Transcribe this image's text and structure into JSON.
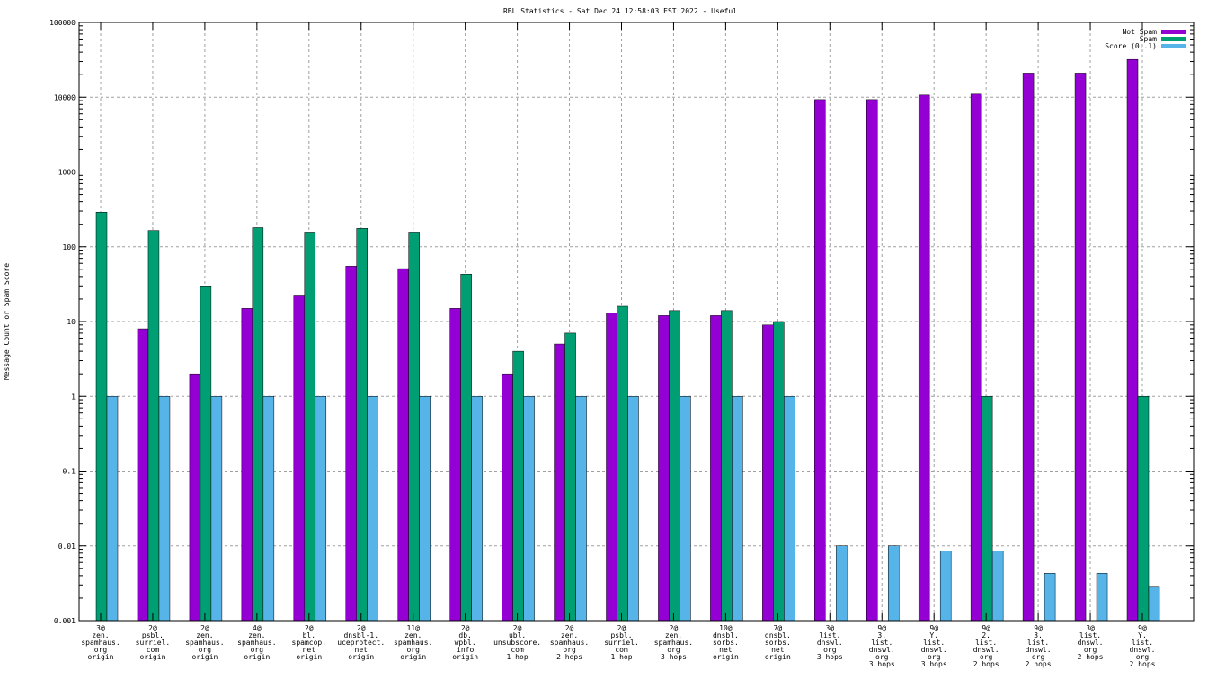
{
  "chart_data": {
    "type": "bar",
    "title": "RBL Statistics - Sat Dec 24 12:58:03 EST 2022 - Useful",
    "xlabel": "",
    "ylabel": "Message Count or Spam Score",
    "yscale": "log",
    "ylim": [
      0.001,
      100000
    ],
    "yticks": [
      "0.001",
      "0.01",
      "0.1",
      "1",
      "10",
      "100",
      "1000",
      "10000",
      "100000"
    ],
    "grid": true,
    "legend_position": "top-right",
    "categories": [
      [
        "3@",
        "zen.",
        "spamhaus.",
        "org",
        "origin"
      ],
      [
        "2@",
        "psbl.",
        "surriel.",
        "com",
        "origin"
      ],
      [
        "2@",
        "zen.",
        "spamhaus.",
        "org",
        "origin"
      ],
      [
        "4@",
        "zen.",
        "spamhaus.",
        "org",
        "origin"
      ],
      [
        "2@",
        "bl.",
        "spamcop.",
        "net",
        "origin"
      ],
      [
        "2@",
        "dnsbl-1.",
        "uceprotect.",
        "net",
        "origin"
      ],
      [
        "11@",
        "zen.",
        "spamhaus.",
        "org",
        "origin"
      ],
      [
        "2@",
        "db.",
        "wpbl.",
        "info",
        "origin"
      ],
      [
        "2@",
        "ubl.",
        "unsubscore.",
        "com",
        "1 hop"
      ],
      [
        "2@",
        "zen.",
        "spamhaus.",
        "org",
        "2 hops"
      ],
      [
        "2@",
        "psbl.",
        "surriel.",
        "com",
        "1 hop"
      ],
      [
        "2@",
        "zen.",
        "spamhaus.",
        "org",
        "3 hops"
      ],
      [
        "10@",
        "dnsbl.",
        "sorbs.",
        "net",
        "origin"
      ],
      [
        "7@",
        "dnsbl.",
        "sorbs.",
        "net",
        "origin"
      ],
      [
        "3@",
        "list.",
        "dnswl.",
        "org",
        "3 hops"
      ],
      [
        "9@",
        "3.",
        "list.",
        "dnswl.",
        "org",
        "3 hops"
      ],
      [
        "9@",
        "Y.",
        "list.",
        "dnswl.",
        "org",
        "3 hops"
      ],
      [
        "9@",
        "2.",
        "list.",
        "dnswl.",
        "org",
        "2 hops"
      ],
      [
        "9@",
        "3.",
        "list.",
        "dnswl.",
        "org",
        "2 hops"
      ],
      [
        "3@",
        "list.",
        "dnswl.",
        "org",
        "2 hops"
      ],
      [
        "9@",
        "Y.",
        "list.",
        "dnswl.",
        "org",
        "2 hops"
      ]
    ],
    "series": [
      {
        "name": "Not Spam",
        "color": "#9400d3",
        "values": [
          null,
          8,
          2,
          15,
          22,
          55,
          51,
          15,
          2,
          5,
          13,
          12,
          12,
          9,
          9300,
          9300,
          10700,
          11000,
          21000,
          21000,
          32000
        ]
      },
      {
        "name": "Spam",
        "color": "#009e73",
        "values": [
          290,
          165,
          30,
          180,
          157,
          176,
          157,
          43,
          4,
          7,
          16,
          14,
          14,
          10,
          null,
          null,
          null,
          1,
          null,
          null,
          1
        ]
      },
      {
        "name": "Score (0..1)",
        "color": "#56b4e9",
        "values": [
          1,
          1,
          1,
          1,
          1,
          1,
          1,
          1,
          1,
          1,
          1,
          1,
          1,
          1,
          0.01,
          0.01,
          0.0085,
          0.0085,
          0.0043,
          0.0043,
          0.0028
        ]
      }
    ]
  }
}
